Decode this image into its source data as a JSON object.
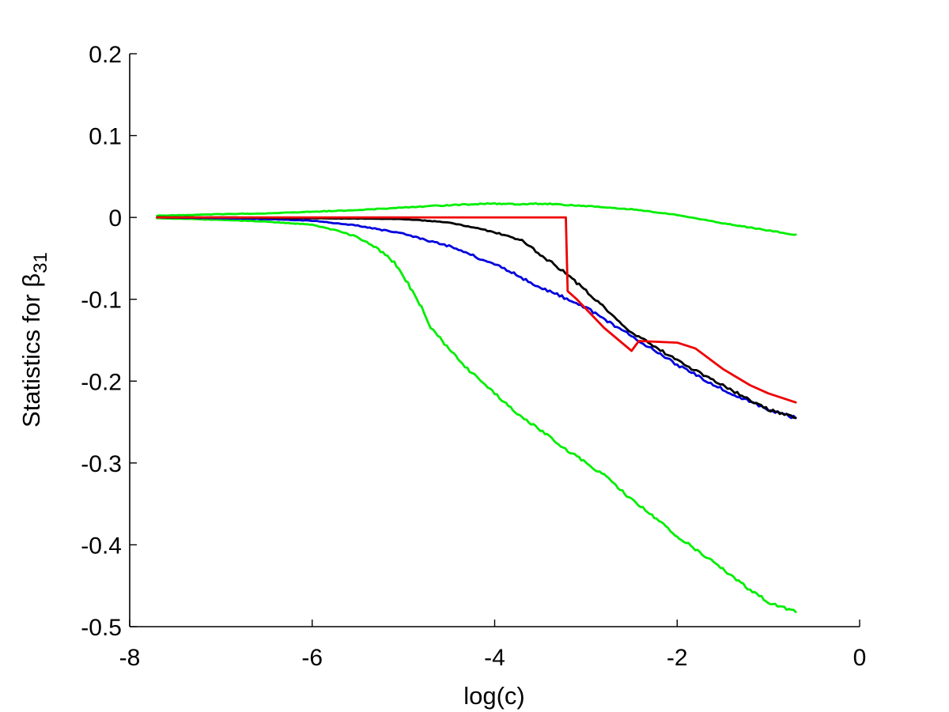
{
  "chart_data": {
    "type": "line",
    "xlabel": "log(c)",
    "ylabel_text": "Statistics for ",
    "ylabel_symbol": "β",
    "ylabel_subscript": "31",
    "xlim": [
      -8,
      0
    ],
    "ylim": [
      -0.5,
      0.2
    ],
    "xticks": [
      -8,
      -6,
      -4,
      -2,
      0
    ],
    "yticks": [
      0.2,
      0.1,
      0,
      -0.1,
      -0.2,
      -0.3,
      -0.4,
      -0.5
    ],
    "xtick_labels": [
      "-8",
      "-6",
      "-4",
      "-2",
      "0"
    ],
    "ytick_labels": [
      "0.2",
      "0.1",
      "0",
      "-0.1",
      "-0.2",
      "-0.3",
      "-0.4",
      "-0.5"
    ],
    "grid": false,
    "legend": "none",
    "series": [
      {
        "color": "#00ee00",
        "role": "upper-band",
        "x": [
          -7.7,
          -7.0,
          -6.5,
          -6.0,
          -5.5,
          -5.0,
          -4.5,
          -4.0,
          -3.8,
          -3.5,
          -3.0,
          -2.5,
          -2.0,
          -1.5,
          -1.0,
          -0.7
        ],
        "y": [
          0.002,
          0.004,
          0.005,
          0.007,
          0.009,
          0.012,
          0.015,
          0.017,
          0.016,
          0.017,
          0.014,
          0.01,
          0.003,
          -0.007,
          -0.016,
          -0.021
        ]
      },
      {
        "color": "#00ee00",
        "role": "lower-band",
        "x": [
          -7.7,
          -7.0,
          -6.5,
          -6.0,
          -5.7,
          -5.5,
          -5.3,
          -5.1,
          -5.0,
          -4.9,
          -4.8,
          -4.7,
          -4.5,
          -4.3,
          -4.0,
          -3.8,
          -3.5,
          -3.2,
          -3.0,
          -2.8,
          -2.5,
          -2.2,
          -2.0,
          -1.8,
          -1.5,
          -1.2,
          -1.0,
          -0.7
        ],
        "y": [
          -0.001,
          -0.003,
          -0.005,
          -0.009,
          -0.017,
          -0.024,
          -0.037,
          -0.055,
          -0.072,
          -0.09,
          -0.11,
          -0.135,
          -0.16,
          -0.185,
          -0.215,
          -0.235,
          -0.26,
          -0.285,
          -0.3,
          -0.315,
          -0.345,
          -0.37,
          -0.39,
          -0.405,
          -0.43,
          -0.455,
          -0.47,
          -0.482
        ]
      },
      {
        "color": "#0000dd",
        "role": "mean",
        "x": [
          -7.7,
          -7.0,
          -6.5,
          -6.0,
          -5.5,
          -5.0,
          -4.5,
          -4.0,
          -3.5,
          -3.0,
          -2.5,
          -2.0,
          -1.5,
          -1.0,
          -0.7
        ],
        "y": [
          0.0,
          -0.001,
          -0.002,
          -0.004,
          -0.01,
          -0.02,
          -0.035,
          -0.057,
          -0.085,
          -0.11,
          -0.145,
          -0.18,
          -0.21,
          -0.235,
          -0.245
        ]
      },
      {
        "color": "#000000",
        "role": "median",
        "x": [
          -7.7,
          -7.0,
          -6.0,
          -5.0,
          -4.5,
          -4.0,
          -3.7,
          -3.5,
          -3.2,
          -3.0,
          -2.5,
          -2.0,
          -1.5,
          -1.0,
          -0.7
        ],
        "y": [
          0.0,
          0.0,
          -0.001,
          -0.002,
          -0.006,
          -0.018,
          -0.028,
          -0.045,
          -0.07,
          -0.09,
          -0.14,
          -0.175,
          -0.205,
          -0.235,
          -0.245
        ]
      },
      {
        "color": "#ee0000",
        "role": "estimate",
        "x": [
          -7.7,
          -6.0,
          -4.0,
          -3.22,
          -3.2,
          -3.1,
          -2.8,
          -2.5,
          -2.42,
          -2.0,
          -1.8,
          -1.5,
          -1.2,
          -1.0,
          -0.7
        ],
        "y": [
          0.0,
          0.0,
          0.0,
          0.0,
          -0.09,
          -0.1,
          -0.135,
          -0.163,
          -0.151,
          -0.153,
          -0.16,
          -0.185,
          -0.205,
          -0.215,
          -0.226
        ]
      }
    ]
  }
}
